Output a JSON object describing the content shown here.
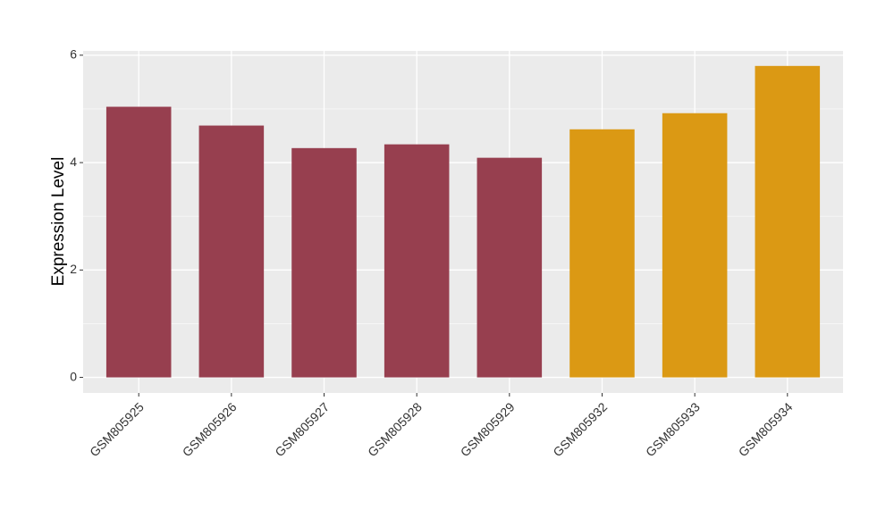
{
  "chart_data": {
    "type": "bar",
    "y_label": "Expression Level",
    "categories": [
      "GSM805925",
      "GSM805926",
      "GSM805927",
      "GSM805928",
      "GSM805929",
      "GSM805932",
      "GSM805933",
      "GSM805934"
    ],
    "values": [
      5.04,
      4.69,
      4.27,
      4.34,
      4.09,
      4.62,
      4.92,
      5.8
    ],
    "colors": [
      "#973f4f",
      "#973f4f",
      "#973f4f",
      "#973f4f",
      "#973f4f",
      "#db9914",
      "#db9914",
      "#db9914"
    ],
    "ylim": [
      -0.29,
      6.08
    ],
    "yticks": [
      0,
      2,
      4,
      6
    ],
    "minor_yticks": [
      1,
      3,
      5
    ],
    "grid": true
  }
}
